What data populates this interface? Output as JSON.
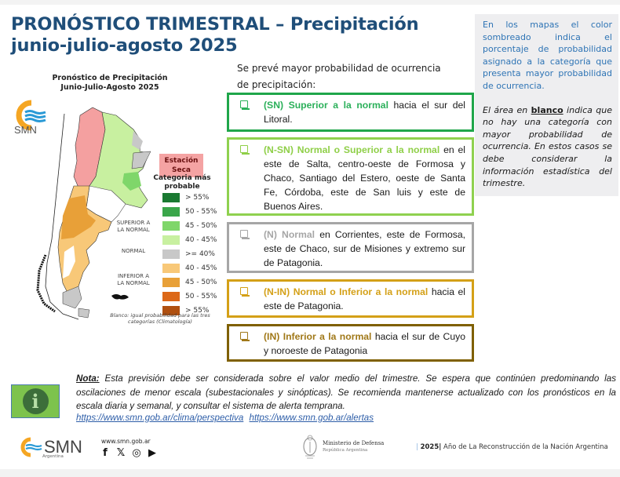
{
  "header": {
    "title_line1": "PRONÓSTICO TRIMESTRAL – Precipitación",
    "title_line2": "junio-julio-agosto 2025"
  },
  "map": {
    "title_line1": "Pronóstico de Precipitación",
    "title_line2": "Junio-Julio-Agosto 2025",
    "logo_text": "SMN",
    "dry_season_label_line1": "Estación",
    "dry_season_label_line2": "Seca",
    "legend_title_line1": "Categoria más",
    "legend_title_line2": "probable",
    "legend_groups": {
      "superior_line1": "SUPERIOR A",
      "superior_line2": "LA NORMAL",
      "normal": "NORMAL",
      "inferior_line1": "INFERIOR A",
      "inferior_line2": "LA NORMAL"
    },
    "legend": [
      {
        "label": "> 55%",
        "color": "#1a7a32"
      },
      {
        "label": "50 - 55%",
        "color": "#3aa64a"
      },
      {
        "label": "45 - 50%",
        "color": "#7fd66a"
      },
      {
        "label": "40 - 45%",
        "color": "#c8f0a0"
      },
      {
        "label": ">= 40%",
        "color": "#c8c8c8"
      },
      {
        "label": "40 - 45%",
        "color": "#f8c878"
      },
      {
        "label": "45 - 50%",
        "color": "#e8a038"
      },
      {
        "label": "50 - 55%",
        "color": "#dc6818"
      },
      {
        "label": "> 55%",
        "color": "#b05010"
      }
    ],
    "footnote_line1": "Blanco: igual probabilidad para las tres",
    "footnote_line2": "categorías (Climatología)"
  },
  "intro": {
    "line1": "Se prevé mayor probabilidad de ocurrencia",
    "line2": "de precipitación:"
  },
  "categories": [
    {
      "title": "(SN) Superior a la normal",
      "text": "  hacia el sur del Litoral.",
      "color": "#1fa64a",
      "title_color": "#2bb05a"
    },
    {
      "title": "(N-SN) Normal o Superior a la normal",
      "text": " en el este de Salta, centro-oeste de Formosa y Chaco, Santiago del Estero, oeste de Santa Fe, Córdoba, este de San luis y este de Buenos Aires.",
      "color": "#8fd14f",
      "title_color": "#8fcf48"
    },
    {
      "title": "(N) Normal",
      "text": " en Corrientes, este de Formosa, este de Chaco, sur de Misiones y extremo sur de Patagonia.",
      "color": "#a6a6a6",
      "title_color": "#a6a6a6"
    },
    {
      "title": "(N-IN) Normal o Inferior a la normal",
      "text": " hacia el este de Patagonia.",
      "color": "#d4a017",
      "title_color": "#d4a017"
    },
    {
      "title": "(IN) Inferior a la normal",
      "text": " hacia el sur de Cuyo y noroeste de Patagonia",
      "color": "#7f6000",
      "title_color": "#a07818"
    }
  ],
  "info_panel": {
    "p1": "En los mapas el color sombreado indica el porcentaje de probabilidad asignado a la categoría que presenta mayor probabilidad de ocurrencia.",
    "p2_before": "El área en ",
    "p2_highlight": "blanco",
    "p2_after": " indica que no hay una categoría con mayor probabilidad de ocurrencia. En estos casos se debe considerar la información estadística del trimestre."
  },
  "nota": {
    "label": "Nota:",
    "text": " Esta previsión debe ser considerada sobre el valor medio del trimestre. Se espera que continúen predominando las oscilaciones de menor escala (subestacionales y sinópticas). Se recomienda mantenerse actualizado con los pronósticos en la escala diaria y semanal, y consultar el sistema de alerta temprana.",
    "link1": "https://www.smn.gob.ar/clima/perspectiva",
    "link2": "https://www.smn.gob.ar/alertas",
    "icon_glyph": "i"
  },
  "footer": {
    "logo_text": "SMN",
    "logo_sub": "Argentina",
    "website": "www.smn.gob.ar",
    "social": [
      "f",
      "𝕏",
      "◎",
      "▶"
    ],
    "ministry_line1": "Ministerio de Defensa",
    "ministry_line2": "República Argentina",
    "year_bar": "|",
    "year": "2025",
    "year_sep": "|",
    "year_text": " Año de La Reconstrucción de la Nación Argentina"
  }
}
